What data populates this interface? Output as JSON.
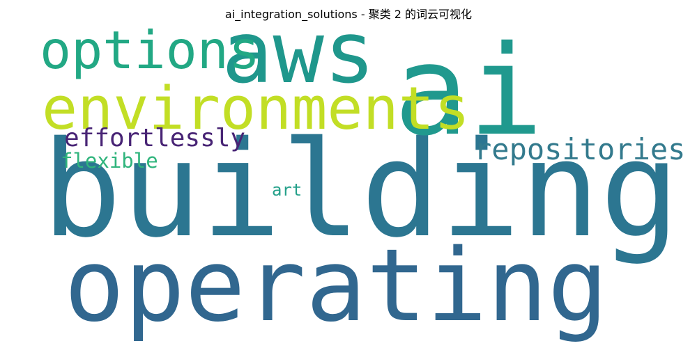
{
  "title": "ai_integration_solutions - 聚类 2 的词云可视化",
  "colors": {
    "background": "#ffffff",
    "title": "#000000"
  },
  "words": [
    {
      "text": "building",
      "color": "#2c7691"
    },
    {
      "text": "operating",
      "color": "#31678f"
    },
    {
      "text": "ai",
      "color": "#20998e"
    },
    {
      "text": "aws",
      "color": "#1f978c"
    },
    {
      "text": "environments",
      "color": "#c2de25"
    },
    {
      "text": "options",
      "color": "#22a884"
    },
    {
      "text": "repositories",
      "color": "#337a8d"
    },
    {
      "text": "effortlessly",
      "color": "#482475"
    },
    {
      "text": "flexible",
      "color": "#2fb47c"
    },
    {
      "text": "art",
      "color": "#24a08a"
    }
  ]
}
